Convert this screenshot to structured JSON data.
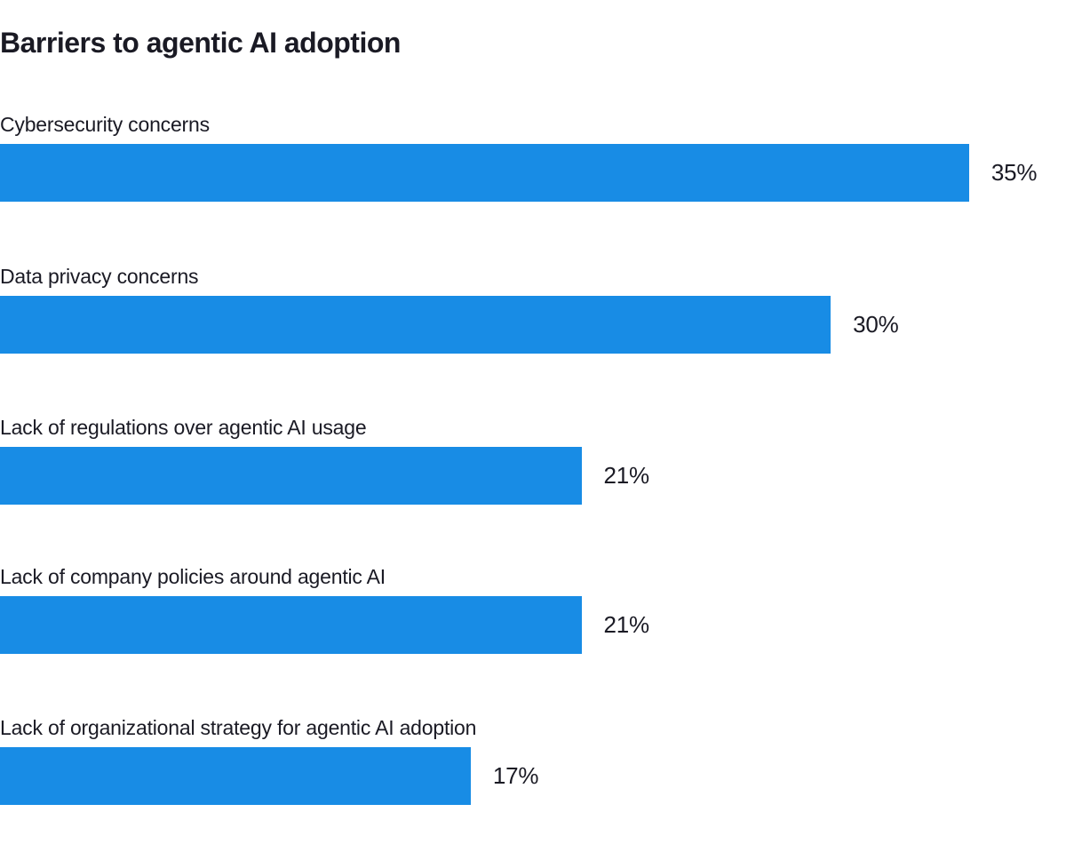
{
  "chart_data": {
    "type": "bar",
    "orientation": "horizontal",
    "title": "Barriers to agentic AI adoption",
    "categories": [
      "Cybersecurity concerns",
      "Data privacy concerns",
      "Lack of regulations over agentic AI usage",
      "Lack of company policies around agentic AI",
      "Lack of organizational strategy for agentic AI adoption"
    ],
    "values": [
      35,
      30,
      21,
      21,
      17
    ],
    "labels": [
      "35%",
      "30%",
      "21%",
      "21%",
      "17%"
    ],
    "value_suffix": "%",
    "xlim": [
      0,
      38.5
    ],
    "xlabel": "",
    "ylabel": "",
    "grid": false,
    "legend": "none",
    "bar_color": "#188ce5",
    "text_color": "#1a1a24",
    "background_color": "#ffffff",
    "data_label_position": "outside-end"
  }
}
